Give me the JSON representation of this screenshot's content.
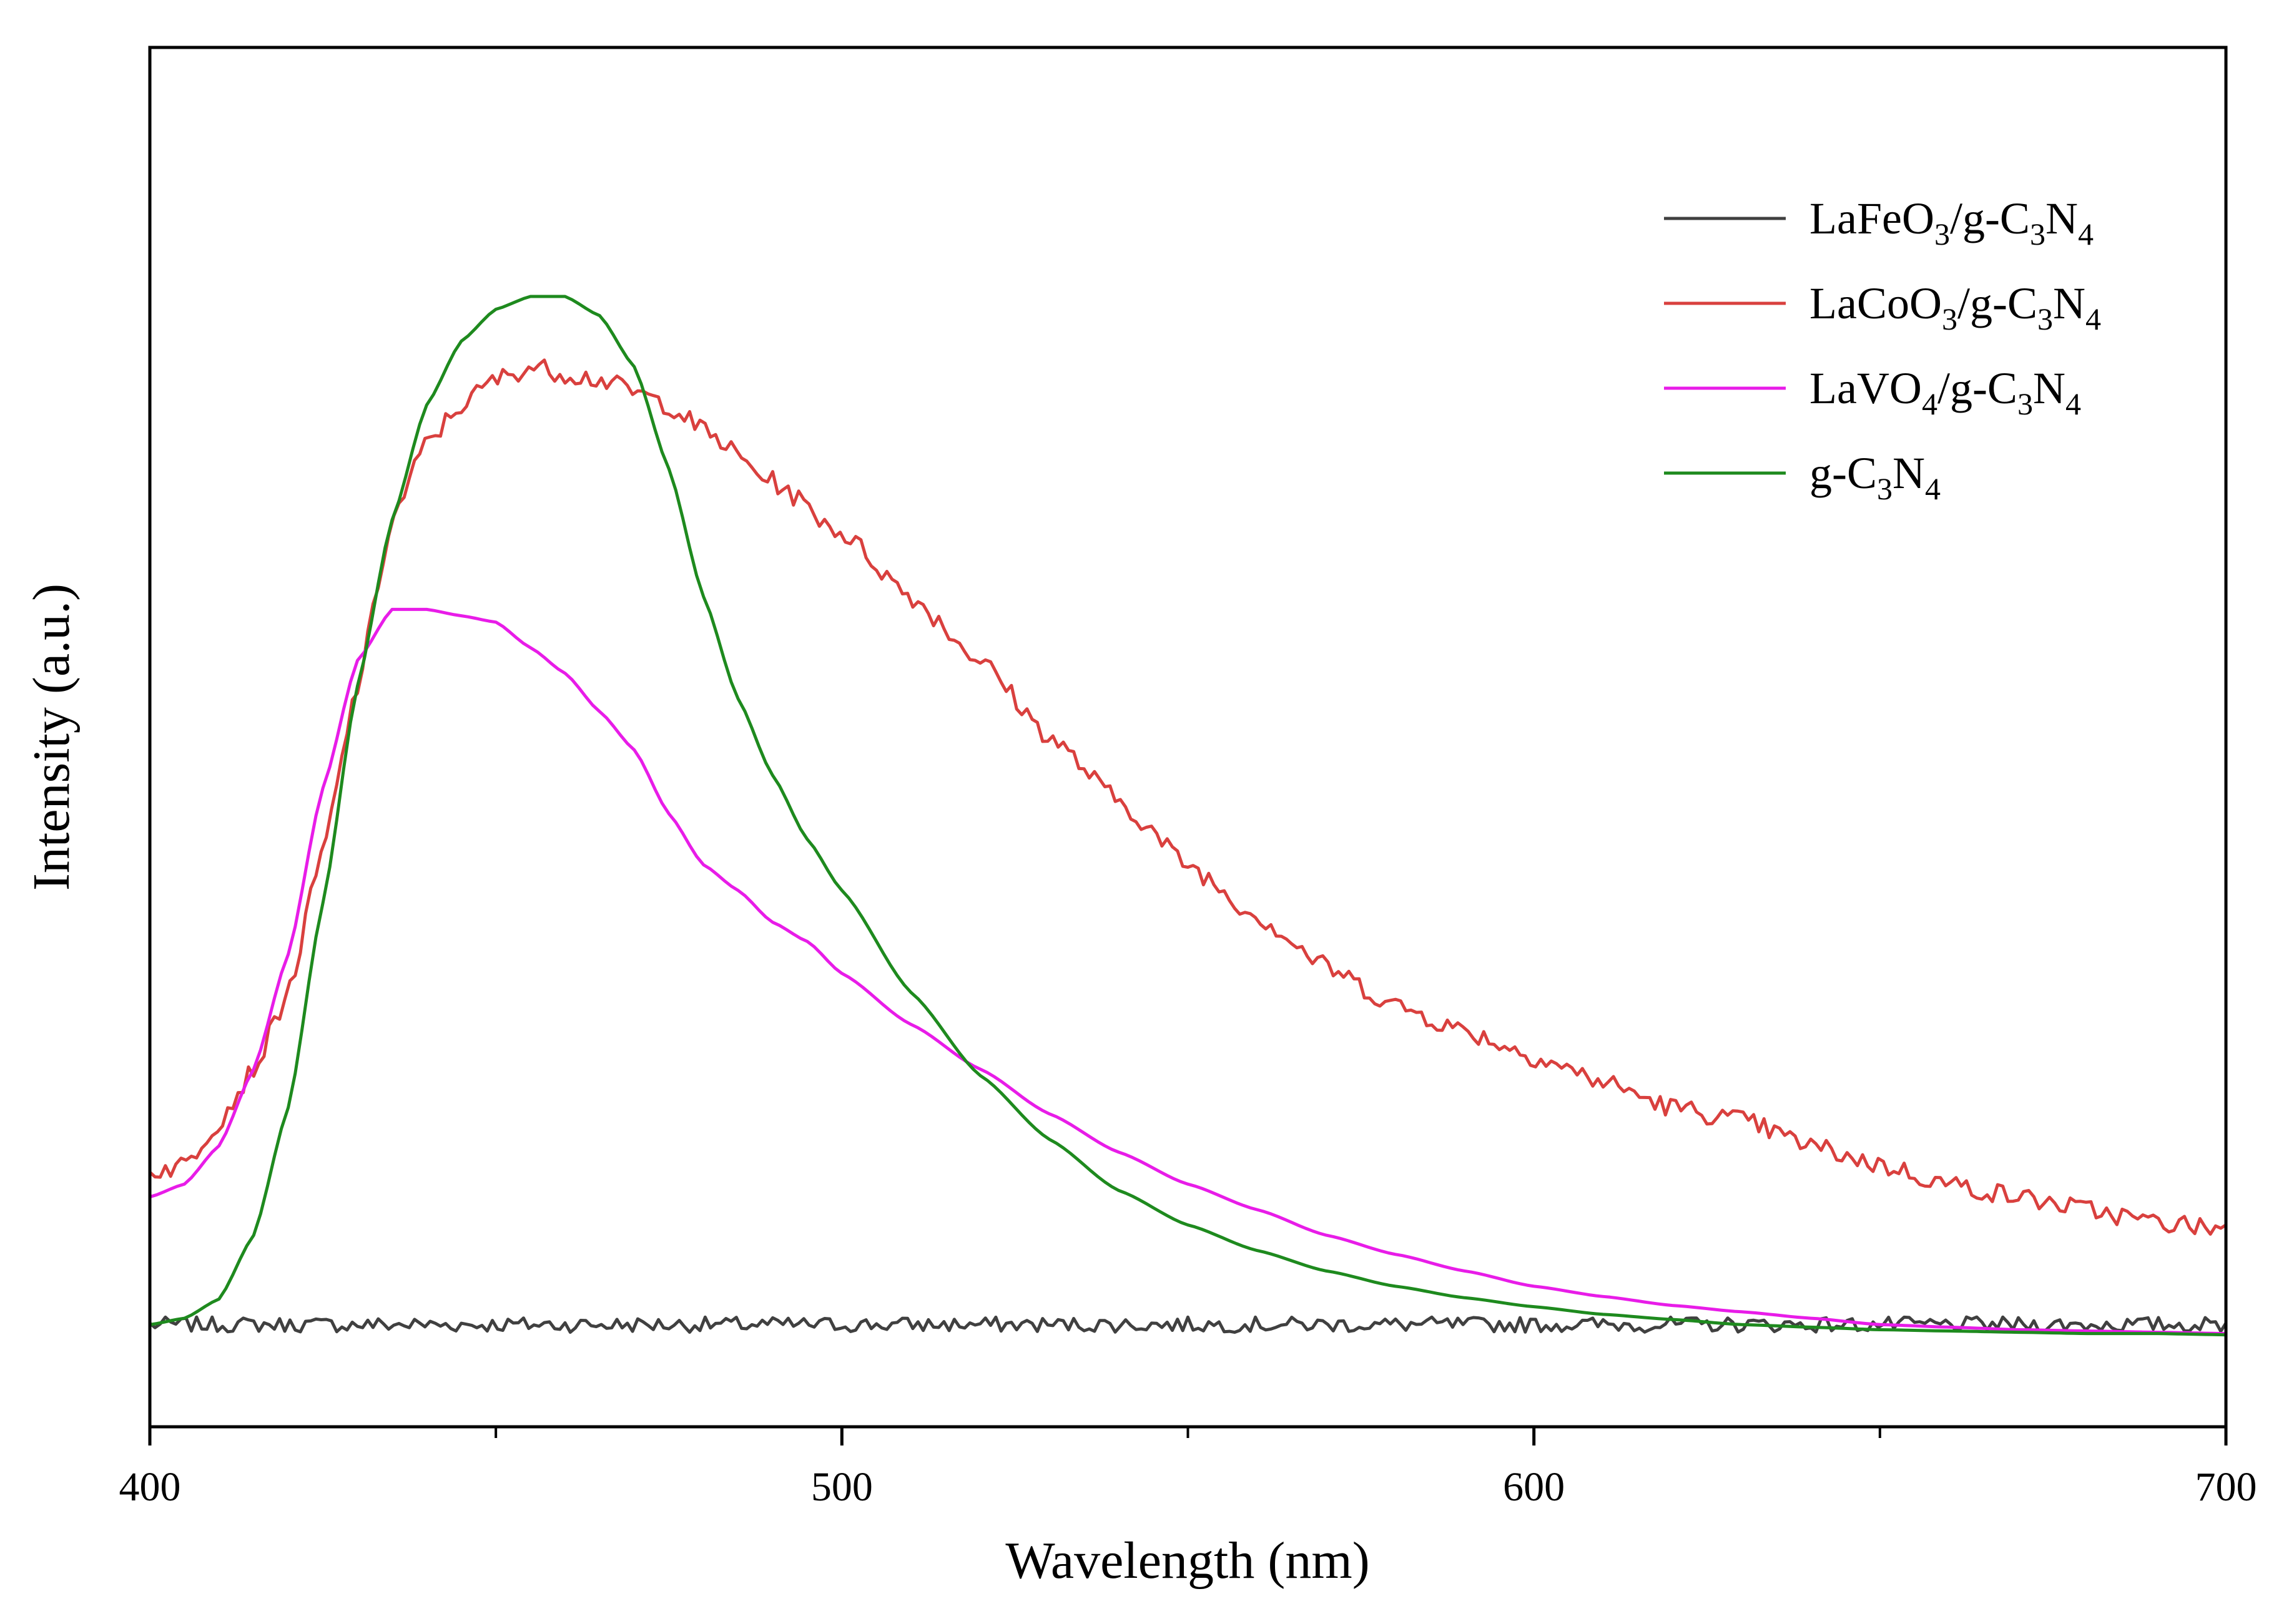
{
  "chart_data": {
    "type": "line",
    "title": "",
    "xlabel": "Wavelength (nm)",
    "ylabel": "Intensity (a.u.)",
    "xlim": [
      400,
      700
    ],
    "ylim": [
      -0.08,
      1.0
    ],
    "x_ticks": [
      400,
      500,
      600,
      700
    ],
    "x_minor_ticks": [
      450,
      550,
      650
    ],
    "grid": false,
    "legend_position": "top-right",
    "series": [
      {
        "name": "LaFeO3/g-C3N4",
        "legend": {
          "pre": "LaFeO",
          "sub1": "3",
          "mid": "/g-C",
          "sub2": "3",
          "post": "N",
          "sub3": "4"
        },
        "color": "#404040",
        "noise": 0.006,
        "points": [
          [
            400,
            0.0
          ],
          [
            450,
            0.0
          ],
          [
            500,
            0.0
          ],
          [
            550,
            0.0
          ],
          [
            600,
            0.0
          ],
          [
            650,
            0.0
          ],
          [
            700,
            0.0
          ]
        ]
      },
      {
        "name": "LaCoO3/g-C3N4",
        "legend": {
          "pre": "LaCoO",
          "sub1": "3",
          "mid": "/g-C",
          "sub2": "3",
          "post": "N",
          "sub3": "4"
        },
        "color": "#d9403e",
        "noise": 0.008,
        "points": [
          [
            400,
            0.12
          ],
          [
            405,
            0.125
          ],
          [
            410,
            0.16
          ],
          [
            415,
            0.2
          ],
          [
            420,
            0.26
          ],
          [
            425,
            0.37
          ],
          [
            430,
            0.5
          ],
          [
            435,
            0.63
          ],
          [
            440,
            0.69
          ],
          [
            445,
            0.72
          ],
          [
            450,
            0.74
          ],
          [
            455,
            0.75
          ],
          [
            460,
            0.745
          ],
          [
            465,
            0.74
          ],
          [
            470,
            0.73
          ],
          [
            475,
            0.72
          ],
          [
            480,
            0.7
          ],
          [
            490,
            0.66
          ],
          [
            500,
            0.62
          ],
          [
            510,
            0.57
          ],
          [
            520,
            0.52
          ],
          [
            530,
            0.46
          ],
          [
            540,
            0.41
          ],
          [
            550,
            0.36
          ],
          [
            560,
            0.32
          ],
          [
            570,
            0.28
          ],
          [
            580,
            0.25
          ],
          [
            590,
            0.23
          ],
          [
            600,
            0.21
          ],
          [
            610,
            0.19
          ],
          [
            620,
            0.17
          ],
          [
            630,
            0.16
          ],
          [
            640,
            0.14
          ],
          [
            650,
            0.125
          ],
          [
            660,
            0.11
          ],
          [
            670,
            0.1
          ],
          [
            680,
            0.09
          ],
          [
            690,
            0.08
          ],
          [
            700,
            0.075
          ]
        ]
      },
      {
        "name": "LaVO4/g-C3N4",
        "legend": {
          "pre": "LaVO",
          "sub1": "4",
          "mid": "/g-C",
          "sub2": "3",
          "post": "N",
          "sub3": "4"
        },
        "color": "#e81ce8",
        "noise": 0,
        "points": [
          [
            400,
            0.1
          ],
          [
            405,
            0.11
          ],
          [
            410,
            0.14
          ],
          [
            415,
            0.2
          ],
          [
            420,
            0.29
          ],
          [
            425,
            0.42
          ],
          [
            430,
            0.52
          ],
          [
            435,
            0.56
          ],
          [
            440,
            0.56
          ],
          [
            445,
            0.555
          ],
          [
            450,
            0.55
          ],
          [
            455,
            0.53
          ],
          [
            460,
            0.51
          ],
          [
            465,
            0.48
          ],
          [
            470,
            0.45
          ],
          [
            475,
            0.4
          ],
          [
            480,
            0.36
          ],
          [
            485,
            0.34
          ],
          [
            490,
            0.315
          ],
          [
            495,
            0.3
          ],
          [
            500,
            0.275
          ],
          [
            510,
            0.235
          ],
          [
            520,
            0.2
          ],
          [
            530,
            0.165
          ],
          [
            540,
            0.135
          ],
          [
            550,
            0.11
          ],
          [
            560,
            0.09
          ],
          [
            570,
            0.07
          ],
          [
            580,
            0.055
          ],
          [
            590,
            0.042
          ],
          [
            600,
            0.03
          ],
          [
            610,
            0.022
          ],
          [
            620,
            0.015
          ],
          [
            630,
            0.01
          ],
          [
            640,
            0.005
          ],
          [
            650,
            0.0
          ],
          [
            660,
            -0.002
          ],
          [
            670,
            -0.004
          ],
          [
            680,
            -0.005
          ],
          [
            690,
            -0.006
          ],
          [
            700,
            -0.007
          ]
        ]
      },
      {
        "name": "g-C3N4",
        "legend": {
          "pre": "g-C",
          "sub1": "3",
          "mid": "N",
          "sub2": "4",
          "post": "",
          "sub3": ""
        },
        "color": "#1e8a1e",
        "noise": 0,
        "points": [
          [
            400,
            0.0
          ],
          [
            405,
            0.005
          ],
          [
            410,
            0.02
          ],
          [
            415,
            0.07
          ],
          [
            420,
            0.17
          ],
          [
            425,
            0.33
          ],
          [
            430,
            0.5
          ],
          [
            435,
            0.63
          ],
          [
            440,
            0.72
          ],
          [
            445,
            0.77
          ],
          [
            450,
            0.795
          ],
          [
            455,
            0.805
          ],
          [
            460,
            0.805
          ],
          [
            465,
            0.79
          ],
          [
            470,
            0.75
          ],
          [
            475,
            0.67
          ],
          [
            480,
            0.57
          ],
          [
            485,
            0.49
          ],
          [
            490,
            0.43
          ],
          [
            495,
            0.38
          ],
          [
            500,
            0.34
          ],
          [
            510,
            0.26
          ],
          [
            520,
            0.195
          ],
          [
            530,
            0.145
          ],
          [
            540,
            0.105
          ],
          [
            550,
            0.078
          ],
          [
            560,
            0.058
          ],
          [
            570,
            0.042
          ],
          [
            580,
            0.03
          ],
          [
            590,
            0.021
          ],
          [
            600,
            0.014
          ],
          [
            610,
            0.008
          ],
          [
            620,
            0.004
          ],
          [
            630,
            0.0
          ],
          [
            640,
            -0.002
          ],
          [
            650,
            -0.004
          ],
          [
            660,
            -0.005
          ],
          [
            670,
            -0.006
          ],
          [
            680,
            -0.007
          ],
          [
            690,
            -0.007
          ],
          [
            700,
            -0.008
          ]
        ]
      }
    ]
  }
}
